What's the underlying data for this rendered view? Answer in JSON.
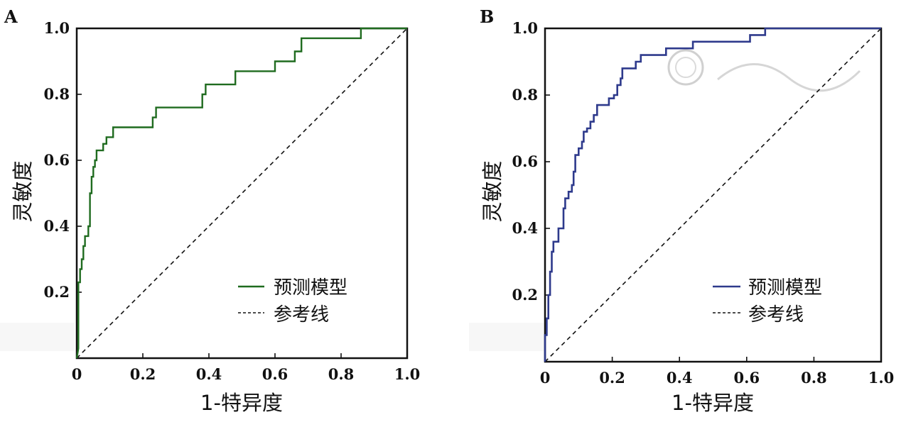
{
  "chart_data": [
    {
      "panel": "A",
      "type": "line",
      "xlabel": "1-特异度",
      "ylabel": "灵敏度",
      "xlim": [
        0,
        1
      ],
      "ylim": [
        0,
        1
      ],
      "x_ticks": [
        "0",
        "0.2",
        "0.4",
        "0.6",
        "0.8",
        "1.0"
      ],
      "y_ticks": [
        "0.2",
        "0.4",
        "0.6",
        "0.8",
        "1.0"
      ],
      "grid": false,
      "legend_position": "bottom-right",
      "series": [
        {
          "name": "预测模型",
          "color": "#1f6b1f",
          "style": "solid",
          "points": [
            [
              0,
              0
            ],
            [
              0.005,
              0.03
            ],
            [
              0.005,
              0.23
            ],
            [
              0.01,
              0.23
            ],
            [
              0.01,
              0.27
            ],
            [
              0.015,
              0.27
            ],
            [
              0.015,
              0.3
            ],
            [
              0.02,
              0.3
            ],
            [
              0.02,
              0.34
            ],
            [
              0.025,
              0.34
            ],
            [
              0.025,
              0.37
            ],
            [
              0.035,
              0.37
            ],
            [
              0.035,
              0.4
            ],
            [
              0.04,
              0.4
            ],
            [
              0.04,
              0.5
            ],
            [
              0.045,
              0.5
            ],
            [
              0.045,
              0.55
            ],
            [
              0.05,
              0.55
            ],
            [
              0.05,
              0.58
            ],
            [
              0.055,
              0.58
            ],
            [
              0.055,
              0.6
            ],
            [
              0.06,
              0.6
            ],
            [
              0.06,
              0.63
            ],
            [
              0.08,
              0.63
            ],
            [
              0.08,
              0.65
            ],
            [
              0.09,
              0.65
            ],
            [
              0.09,
              0.67
            ],
            [
              0.11,
              0.67
            ],
            [
              0.11,
              0.7
            ],
            [
              0.23,
              0.7
            ],
            [
              0.23,
              0.73
            ],
            [
              0.24,
              0.73
            ],
            [
              0.24,
              0.76
            ],
            [
              0.38,
              0.76
            ],
            [
              0.38,
              0.8
            ],
            [
              0.39,
              0.8
            ],
            [
              0.39,
              0.83
            ],
            [
              0.48,
              0.83
            ],
            [
              0.48,
              0.87
            ],
            [
              0.6,
              0.87
            ],
            [
              0.6,
              0.9
            ],
            [
              0.66,
              0.9
            ],
            [
              0.66,
              0.93
            ],
            [
              0.68,
              0.93
            ],
            [
              0.68,
              0.97
            ],
            [
              0.86,
              0.97
            ],
            [
              0.86,
              1.0
            ],
            [
              1.0,
              1.0
            ]
          ]
        },
        {
          "name": "参考线",
          "color": "#111111",
          "style": "dashed",
          "points": [
            [
              0,
              0
            ],
            [
              1,
              1
            ]
          ]
        }
      ]
    },
    {
      "panel": "B",
      "type": "line",
      "xlabel": "1-特异度",
      "ylabel": "灵敏度",
      "xlim": [
        0,
        1
      ],
      "ylim": [
        0,
        1
      ],
      "x_ticks": [
        "0",
        "0.2",
        "0.4",
        "0.6",
        "0.8",
        "1.0"
      ],
      "y_ticks": [
        "0.2",
        "0.4",
        "0.6",
        "0.8",
        "1.0"
      ],
      "grid": false,
      "legend_position": "bottom-right",
      "series": [
        {
          "name": "预测模型",
          "color": "#2e3a8c",
          "style": "solid",
          "points": [
            [
              0,
              0
            ],
            [
              0,
              0.08
            ],
            [
              0.005,
              0.08
            ],
            [
              0.005,
              0.13
            ],
            [
              0.01,
              0.13
            ],
            [
              0.01,
              0.2
            ],
            [
              0.015,
              0.2
            ],
            [
              0.015,
              0.27
            ],
            [
              0.02,
              0.27
            ],
            [
              0.02,
              0.33
            ],
            [
              0.025,
              0.33
            ],
            [
              0.025,
              0.36
            ],
            [
              0.04,
              0.36
            ],
            [
              0.04,
              0.4
            ],
            [
              0.055,
              0.4
            ],
            [
              0.055,
              0.46
            ],
            [
              0.06,
              0.46
            ],
            [
              0.06,
              0.49
            ],
            [
              0.07,
              0.49
            ],
            [
              0.07,
              0.51
            ],
            [
              0.08,
              0.51
            ],
            [
              0.08,
              0.53
            ],
            [
              0.085,
              0.53
            ],
            [
              0.085,
              0.57
            ],
            [
              0.09,
              0.57
            ],
            [
              0.09,
              0.62
            ],
            [
              0.1,
              0.62
            ],
            [
              0.1,
              0.64
            ],
            [
              0.11,
              0.64
            ],
            [
              0.11,
              0.66
            ],
            [
              0.115,
              0.66
            ],
            [
              0.115,
              0.69
            ],
            [
              0.125,
              0.69
            ],
            [
              0.125,
              0.7
            ],
            [
              0.135,
              0.7
            ],
            [
              0.135,
              0.72
            ],
            [
              0.145,
              0.72
            ],
            [
              0.145,
              0.74
            ],
            [
              0.155,
              0.74
            ],
            [
              0.155,
              0.77
            ],
            [
              0.19,
              0.77
            ],
            [
              0.19,
              0.79
            ],
            [
              0.205,
              0.79
            ],
            [
              0.205,
              0.8
            ],
            [
              0.215,
              0.8
            ],
            [
              0.215,
              0.83
            ],
            [
              0.225,
              0.83
            ],
            [
              0.225,
              0.85
            ],
            [
              0.23,
              0.85
            ],
            [
              0.23,
              0.88
            ],
            [
              0.27,
              0.88
            ],
            [
              0.27,
              0.9
            ],
            [
              0.285,
              0.9
            ],
            [
              0.285,
              0.92
            ],
            [
              0.36,
              0.92
            ],
            [
              0.36,
              0.94
            ],
            [
              0.44,
              0.94
            ],
            [
              0.44,
              0.96
            ],
            [
              0.61,
              0.96
            ],
            [
              0.61,
              0.98
            ],
            [
              0.655,
              0.98
            ],
            [
              0.655,
              1.0
            ],
            [
              1.0,
              1.0
            ]
          ]
        },
        {
          "name": "参考线",
          "color": "#111111",
          "style": "dashed",
          "points": [
            [
              0,
              0
            ],
            [
              1,
              1
            ]
          ]
        }
      ]
    }
  ]
}
